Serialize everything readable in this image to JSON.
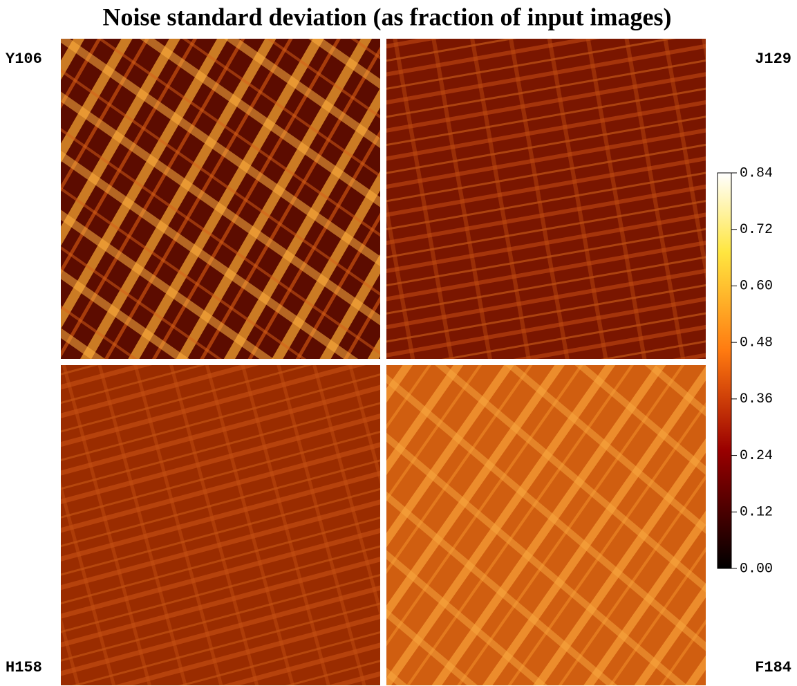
{
  "chart_data": {
    "type": "heatmap",
    "title": "Noise standard deviation (as fraction of input images)",
    "panels": [
      {
        "label": "Y106"
      },
      {
        "label": "J129"
      },
      {
        "label": "H158"
      },
      {
        "label": "F184"
      }
    ],
    "colormap": "afmhot",
    "colorbar": {
      "lim": [
        0,
        0.84
      ],
      "ticks": [
        {
          "value": 0,
          "label": "0.00"
        },
        {
          "value": 0.12,
          "label": "0.12"
        },
        {
          "value": 0.24,
          "label": "0.24"
        },
        {
          "value": 0.36,
          "label": "0.36"
        },
        {
          "value": 0.48,
          "label": "0.48"
        },
        {
          "value": 0.6,
          "label": "0.60"
        },
        {
          "value": 0.72,
          "label": "0.72"
        },
        {
          "value": 0.84,
          "label": "0.84"
        }
      ]
    }
  }
}
